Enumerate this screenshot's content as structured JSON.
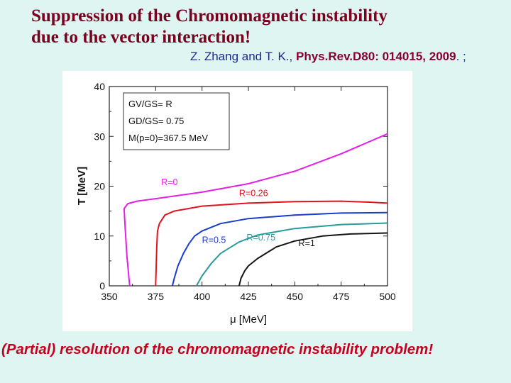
{
  "title_line1": "Suppression of the Chromomagnetic instability",
  "title_line2": "due to the vector interaction!",
  "citation": {
    "authors": "Z. Zhang and T. K., ",
    "ref": "Phys.Rev.D80: 014015, 2009",
    "tail": ". ;"
  },
  "footer": "(Partial) resolution of the chromomagnetic instability problem!",
  "colors": {
    "title": "#7a0020",
    "citation": "#1b2a8c",
    "reference": "#8b0030",
    "footer": "#c8001f",
    "background": "#dff5f2"
  },
  "chart_data": {
    "type": "line",
    "xlabel": "μ [MeV]",
    "ylabel": "T [MeV]",
    "xlim": [
      350,
      500
    ],
    "ylim": [
      0,
      40
    ],
    "xticks": [
      "350",
      "375",
      "400",
      "425",
      "450",
      "475",
      "500"
    ],
    "yticks": [
      "0",
      "10",
      "20",
      "30",
      "40"
    ],
    "legend": {
      "placement": "top-left",
      "lines": [
        "GV/GS= R",
        "GD/GS= 0.75",
        "M(p=0)=367.5 MeV"
      ]
    },
    "series": [
      {
        "name": "R=0",
        "color": "#e61ee6",
        "x": [
          361,
          360.5,
          360,
          359.5,
          359,
          358.5,
          358,
          360,
          365,
          375,
          400,
          425,
          450,
          475,
          500
        ],
        "y": [
          0,
          2,
          4,
          6,
          9,
          12,
          15.5,
          16.5,
          17.0,
          17.5,
          18.8,
          20.5,
          23.0,
          26.5,
          30.5
        ]
      },
      {
        "name": "R=0.26",
        "color": "#e0141e",
        "x": [
          375,
          375.3,
          375.6,
          376,
          377,
          380,
          385,
          400,
          425,
          450,
          475,
          490,
          500
        ],
        "y": [
          0,
          4,
          8,
          11,
          12.5,
          14.2,
          15.0,
          16.0,
          16.6,
          16.9,
          17.0,
          16.8,
          16.6
        ]
      },
      {
        "name": "R=0.5",
        "color": "#1a3ccc",
        "x": [
          384,
          385,
          387,
          390,
          393,
          396,
          400,
          410,
          425,
          450,
          475,
          500
        ],
        "y": [
          0,
          1.5,
          4.0,
          6.5,
          8.5,
          10.0,
          11.0,
          12.5,
          13.5,
          14.2,
          14.6,
          14.7
        ]
      },
      {
        "name": "R=0.75",
        "color": "#2a9a9a",
        "x": [
          397,
          400,
          405,
          410,
          420,
          430,
          450,
          475,
          500
        ],
        "y": [
          0,
          2.0,
          4.5,
          6.5,
          8.8,
          10.2,
          11.5,
          12.3,
          12.6
        ]
      },
      {
        "name": "R=1",
        "color": "#141414",
        "x": [
          420,
          421,
          423,
          425,
          430,
          440,
          450,
          465,
          480,
          500
        ],
        "y": [
          0,
          1.5,
          3.0,
          4.0,
          5.5,
          7.8,
          9.0,
          10.0,
          10.4,
          10.6
        ]
      }
    ],
    "series_labels": [
      {
        "text": "R=0",
        "x": 378,
        "y": 20.2,
        "color": "#e61ee6"
      },
      {
        "text": "R=0.26",
        "x": 420,
        "y": 18.0,
        "color": "#e0141e"
      },
      {
        "text": "R=0.5",
        "x": 400,
        "y": 8.6,
        "color": "#1a3ccc"
      },
      {
        "text": "R=0.75",
        "x": 424,
        "y": 9.1,
        "color": "#2a9a9a"
      },
      {
        "text": "R=1",
        "x": 452,
        "y": 8.0,
        "color": "#141414"
      }
    ]
  }
}
